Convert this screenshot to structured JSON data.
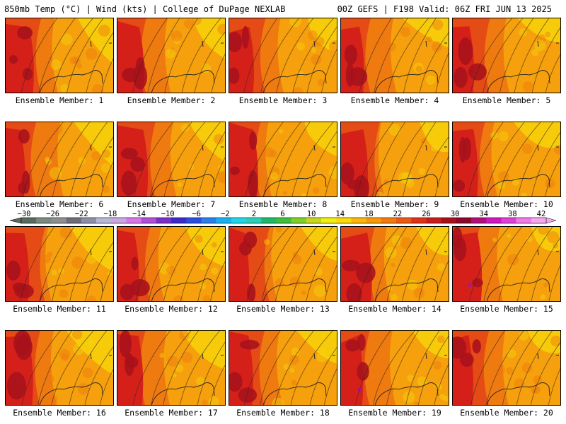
{
  "header": {
    "left": "850mb Temp (°C) | Wind (kts) | College of DuPage NEXLAB",
    "right": "00Z GEFS | F198 Valid: 06Z FRI JUN 13 2025"
  },
  "member_label_prefix": "Ensemble Member: ",
  "members": [
    1,
    2,
    3,
    4,
    5,
    6,
    7,
    8,
    9,
    10,
    11,
    12,
    13,
    14,
    15,
    16,
    17,
    18,
    19,
    20
  ],
  "colorbar": {
    "labels": [
      "−30",
      "−26",
      "−22",
      "−18",
      "−14",
      "−10",
      "−6",
      "−2",
      "2",
      "6",
      "10",
      "14",
      "18",
      "22",
      "26",
      "30",
      "34",
      "38",
      "42"
    ],
    "colors": [
      "#5a6b5e",
      "#7a8a7e",
      "#8f8f8f",
      "#6e6e7a",
      "#8c8fa8",
      "#b7b7d6",
      "#c9a7e0",
      "#d977e8",
      "#b04fd6",
      "#7a2fc9",
      "#3c2bc9",
      "#2a4fe0",
      "#2b7fe8",
      "#1ab0ef",
      "#1fd6e8",
      "#2ad1b8",
      "#1fb86b",
      "#3fbf3a",
      "#7fcf2a",
      "#c8d61a",
      "#f2ee10",
      "#fdd90a",
      "#fbb707",
      "#f79a08",
      "#f27a10",
      "#ec5a12",
      "#e0321a",
      "#c81c1c",
      "#a8101a",
      "#8b0a2a",
      "#b0107a",
      "#d018c0",
      "#e040d8",
      "#f07ae6",
      "#f6a8ee"
    ]
  },
  "palette": {
    "yellow": "#f7d20b",
    "orange": "#f5a00c",
    "dark_orange": "#ee7a10",
    "red_orange": "#e54b14",
    "red": "#d5201a",
    "dark_red": "#a8121b",
    "magenta": "#b0168a"
  }
}
